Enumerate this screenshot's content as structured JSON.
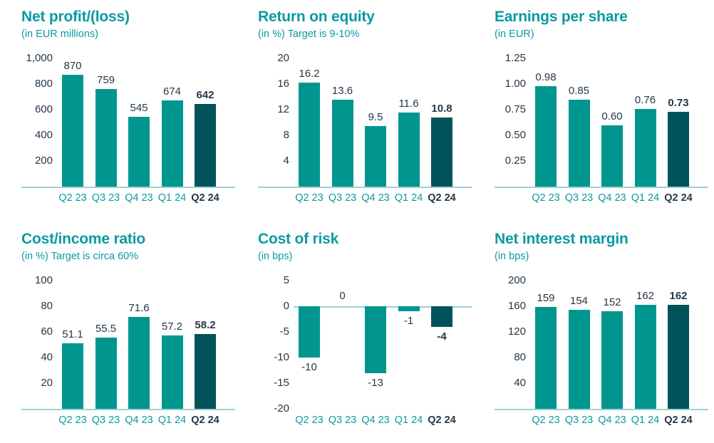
{
  "theme": {
    "bar_color": "#00968f",
    "highlight_bar_color": "#00535a",
    "title_color": "#0a9aa2",
    "subtitle_color": "#0a9aa2",
    "value_label_color": "#253746",
    "tick_label_color": "#253746",
    "x_label_color": "#0a9aa2",
    "x_label_highlight_color": "#253746",
    "axis_line_color": "#9bd3d5",
    "background_color": "#ffffff"
  },
  "chart_data": [
    {
      "type": "bar",
      "title": "Net profit/(loss)",
      "subtitle": "(in EUR millions)",
      "categories": [
        "Q2 23",
        "Q3 23",
        "Q4 23",
        "Q1 24",
        "Q2 24"
      ],
      "values": [
        870,
        759,
        545,
        674,
        642
      ],
      "value_labels": [
        "870",
        "759",
        "545",
        "674",
        "642"
      ],
      "ylim": [
        0,
        1000
      ],
      "tick_values": [
        1000,
        800,
        600,
        400,
        200
      ],
      "tick_labels": [
        "1,000",
        "800",
        "600",
        "400",
        "200"
      ],
      "highlight_index": 4,
      "grid": false,
      "legend": false
    },
    {
      "type": "bar",
      "title": "Return on equity",
      "subtitle": "(in %) Target is 9-10%",
      "categories": [
        "Q2 23",
        "Q3 23",
        "Q4 23",
        "Q1 24",
        "Q2 24"
      ],
      "values": [
        16.2,
        13.6,
        9.5,
        11.6,
        10.8
      ],
      "value_labels": [
        "16.2",
        "13.6",
        "9.5",
        "11.6",
        "10.8"
      ],
      "ylim": [
        0,
        20
      ],
      "tick_values": [
        20,
        16,
        12,
        8,
        4
      ],
      "tick_labels": [
        "20",
        "16",
        "12",
        "8",
        "4"
      ],
      "highlight_index": 4,
      "grid": false,
      "legend": false
    },
    {
      "type": "bar",
      "title": "Earnings per share",
      "subtitle": "(in EUR)",
      "categories": [
        "Q2 23",
        "Q3 23",
        "Q4 23",
        "Q1 24",
        "Q2 24"
      ],
      "values": [
        0.98,
        0.85,
        0.6,
        0.76,
        0.73
      ],
      "value_labels": [
        "0.98",
        "0.85",
        "0.60",
        "0.76",
        "0.73"
      ],
      "ylim": [
        0,
        1.25
      ],
      "tick_values": [
        1.25,
        1.0,
        0.75,
        0.5,
        0.25
      ],
      "tick_labels": [
        "1.25",
        "1.00",
        "0.75",
        "0.50",
        "0.25"
      ],
      "highlight_index": 4,
      "grid": false,
      "legend": false
    },
    {
      "type": "bar",
      "title": "Cost/income ratio",
      "subtitle": "(in %) Target is circa 60%",
      "categories": [
        "Q2 23",
        "Q3 23",
        "Q4 23",
        "Q1 24",
        "Q2 24"
      ],
      "values": [
        51.1,
        55.5,
        71.6,
        57.2,
        58.2
      ],
      "value_labels": [
        "51.1",
        "55.5",
        "71.6",
        "57.2",
        "58.2"
      ],
      "ylim": [
        0,
        100
      ],
      "tick_values": [
        100,
        80,
        60,
        40,
        20
      ],
      "tick_labels": [
        "100",
        "80",
        "60",
        "40",
        "20"
      ],
      "highlight_index": 4,
      "grid": false,
      "legend": false
    },
    {
      "type": "bar",
      "title": "Cost of risk",
      "subtitle": "(in bps)",
      "categories": [
        "Q2 23",
        "Q3 23",
        "Q4 23",
        "Q1 24",
        "Q2 24"
      ],
      "values": [
        -10,
        0,
        -13,
        -1,
        -4
      ],
      "value_labels": [
        "-10",
        "0",
        "-13",
        "-1",
        "-4"
      ],
      "ylim": [
        -20,
        5
      ],
      "tick_values": [
        5,
        0,
        -5,
        -10,
        -15,
        -20
      ],
      "tick_labels": [
        "5",
        "0",
        "-5",
        "-10",
        "-15",
        "-20"
      ],
      "highlight_index": 4,
      "grid": false,
      "legend": false
    },
    {
      "type": "bar",
      "title": "Net interest margin",
      "subtitle": "(in bps)",
      "categories": [
        "Q2 23",
        "Q3 23",
        "Q4 23",
        "Q1 24",
        "Q2 24"
      ],
      "values": [
        159,
        154,
        152,
        162,
        162
      ],
      "value_labels": [
        "159",
        "154",
        "152",
        "162",
        "162"
      ],
      "ylim": [
        0,
        200
      ],
      "tick_values": [
        200,
        160,
        120,
        80,
        40
      ],
      "tick_labels": [
        "200",
        "160",
        "120",
        "80",
        "40"
      ],
      "highlight_index": 4,
      "grid": false,
      "legend": false
    }
  ]
}
